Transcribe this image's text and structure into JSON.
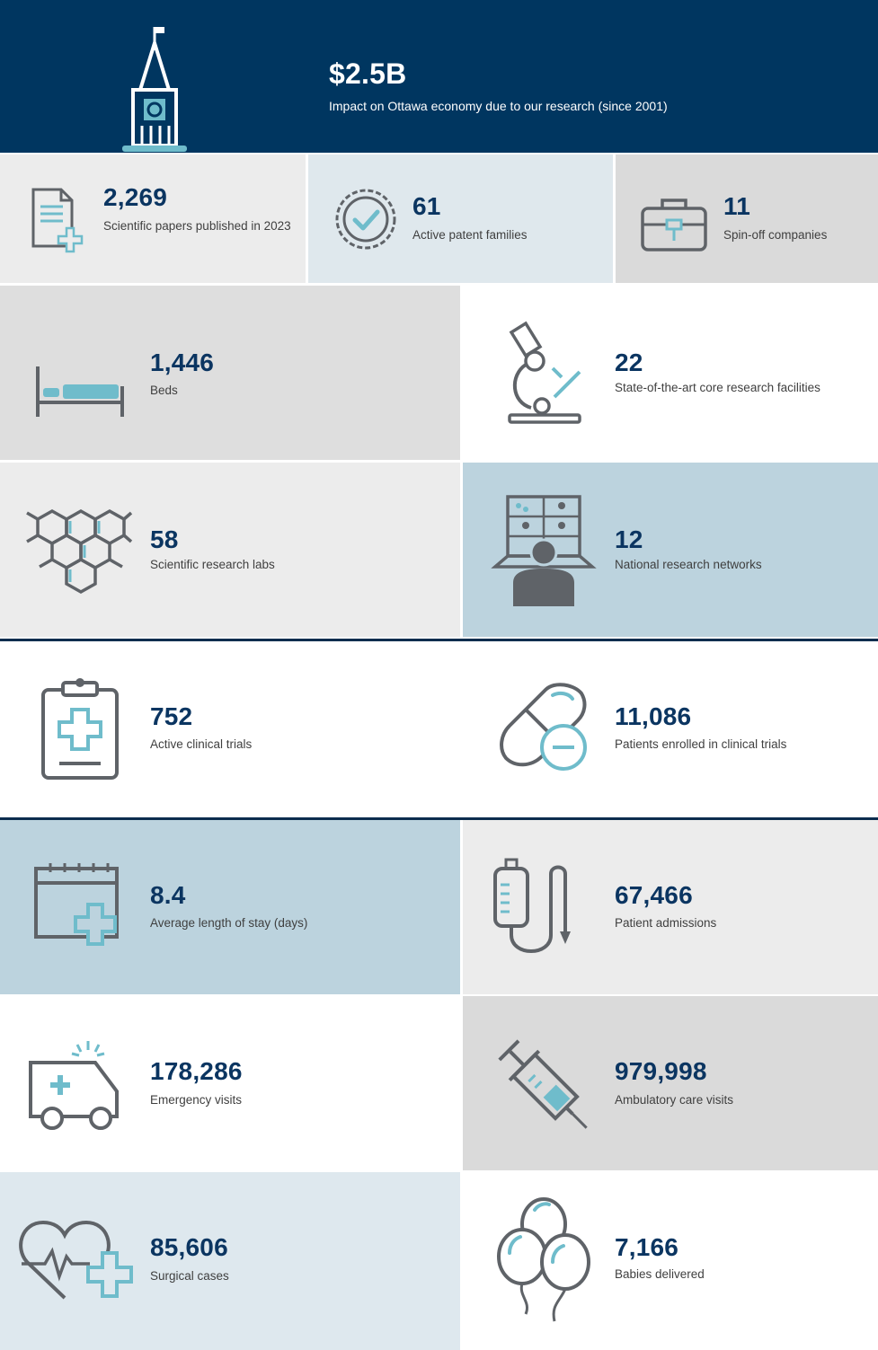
{
  "header": {
    "value": "$2.5B",
    "label": "Impact on Ottawa economy due to our research (since 2001)",
    "icon": "tower-icon"
  },
  "colors": {
    "navy": "#003660",
    "number": "#0b3561",
    "icon_gray": "#5f6368",
    "icon_teal": "#6fbccb"
  },
  "top_row": [
    {
      "value": "2,269",
      "label": "Scientific papers published in 2023",
      "icon": "document-plus-icon"
    },
    {
      "value": "61",
      "label": "Active patent families",
      "icon": "seal-check-icon"
    },
    {
      "value": "11",
      "label": "Spin-off companies",
      "icon": "briefcase-icon"
    }
  ],
  "grid": [
    {
      "value": "1,446",
      "label": "Beds",
      "icon": "bed-icon"
    },
    {
      "value": "22",
      "label": "State-of-the-art core research facilities",
      "icon": "microscope-icon"
    },
    {
      "value": "58",
      "label": "Scientific research labs",
      "icon": "hexagon-molecule-icon"
    },
    {
      "value": "12",
      "label": "National research networks",
      "icon": "video-conference-icon"
    },
    {
      "value": "752",
      "label": "Active clinical trials",
      "icon": "clipboard-cross-icon"
    },
    {
      "value": "11,086",
      "label": "Patients enrolled in clinical trials",
      "icon": "pill-capsule-icon"
    },
    {
      "value": "8.4",
      "label": "Average length of stay (days)",
      "icon": "calendar-plus-icon"
    },
    {
      "value": "67,466",
      "label": "Patient admissions",
      "icon": "iv-drip-icon"
    },
    {
      "value": "178,286",
      "label": "Emergency visits",
      "icon": "ambulance-icon"
    },
    {
      "value": "979,998",
      "label": "Ambulatory care visits",
      "icon": "syringe-icon"
    },
    {
      "value": "85,606",
      "label": "Surgical cases",
      "icon": "heart-pulse-icon"
    },
    {
      "value": "7,166",
      "label": "Babies delivered",
      "icon": "balloons-icon"
    }
  ]
}
